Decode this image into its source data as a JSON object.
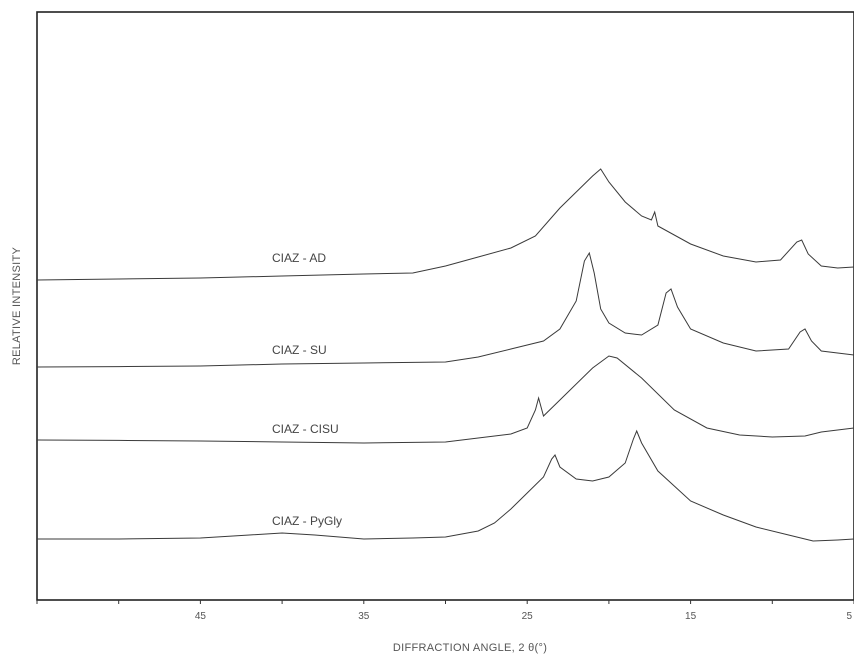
{
  "chart_data": {
    "type": "line",
    "xlabel": "DIFFRACTION ANGLE, 2 θ(°)",
    "ylabel": "RELATIVE INTENSITY",
    "xlim": [
      55,
      5
    ],
    "x_ticks": [
      45,
      35,
      25,
      15,
      5
    ],
    "grid": false,
    "series": [
      {
        "name": "CIAZ - AD",
        "baseline": 3,
        "points": [
          [
            55,
            0
          ],
          [
            50,
            0.05
          ],
          [
            45,
            0.1
          ],
          [
            40,
            0.2
          ],
          [
            35,
            0.3
          ],
          [
            32,
            0.35
          ],
          [
            30,
            0.7
          ],
          [
            28,
            1.15
          ],
          [
            26,
            1.6
          ],
          [
            24.5,
            2.2
          ],
          [
            23,
            3.6
          ],
          [
            21,
            5.2
          ],
          [
            20.5,
            5.55
          ],
          [
            20,
            4.9
          ],
          [
            19,
            3.9
          ],
          [
            18,
            3.2
          ],
          [
            17.4,
            3.0
          ],
          [
            17.2,
            3.4
          ],
          [
            17.0,
            2.7
          ],
          [
            15,
            1.8
          ],
          [
            13,
            1.2
          ],
          [
            11,
            0.9
          ],
          [
            9.5,
            1.0
          ],
          [
            8.5,
            1.9
          ],
          [
            8.2,
            2.0
          ],
          [
            7.8,
            1.3
          ],
          [
            7,
            0.7
          ],
          [
            6,
            0.6
          ],
          [
            5,
            0.65
          ]
        ]
      },
      {
        "name": "CIAZ - SU",
        "baseline": 2,
        "points": [
          [
            55,
            0
          ],
          [
            50,
            0.02
          ],
          [
            45,
            0.05
          ],
          [
            40,
            0.15
          ],
          [
            35,
            0.2
          ],
          [
            30,
            0.25
          ],
          [
            28,
            0.5
          ],
          [
            26,
            0.9
          ],
          [
            24,
            1.3
          ],
          [
            23,
            1.9
          ],
          [
            22,
            3.3
          ],
          [
            21.5,
            5.3
          ],
          [
            21.2,
            5.7
          ],
          [
            20.9,
            4.7
          ],
          [
            20.5,
            2.9
          ],
          [
            20,
            2.2
          ],
          [
            19,
            1.7
          ],
          [
            18,
            1.6
          ],
          [
            17,
            2.1
          ],
          [
            16.5,
            3.7
          ],
          [
            16.2,
            3.9
          ],
          [
            15.8,
            3.0
          ],
          [
            15,
            1.9
          ],
          [
            13,
            1.2
          ],
          [
            11,
            0.8
          ],
          [
            9,
            0.9
          ],
          [
            8.3,
            1.75
          ],
          [
            8,
            1.9
          ],
          [
            7.6,
            1.3
          ],
          [
            7,
            0.8
          ],
          [
            5,
            0.6
          ]
        ]
      },
      {
        "name": "CIAZ - CISU",
        "baseline": 1,
        "points": [
          [
            55,
            0
          ],
          [
            50,
            -0.02
          ],
          [
            45,
            -0.05
          ],
          [
            40,
            -0.1
          ],
          [
            35,
            -0.15
          ],
          [
            30,
            -0.1
          ],
          [
            28,
            0.1
          ],
          [
            26,
            0.3
          ],
          [
            25,
            0.6
          ],
          [
            24.5,
            1.5
          ],
          [
            24.3,
            2.1
          ],
          [
            24.0,
            1.2
          ],
          [
            23,
            2.0
          ],
          [
            21,
            3.6
          ],
          [
            20,
            4.2
          ],
          [
            19.5,
            4.1
          ],
          [
            18,
            3.1
          ],
          [
            16,
            1.5
          ],
          [
            14,
            0.6
          ],
          [
            12,
            0.25
          ],
          [
            10,
            0.15
          ],
          [
            8,
            0.2
          ],
          [
            7,
            0.4
          ],
          [
            5,
            0.6
          ]
        ]
      },
      {
        "name": "CIAZ - PyGly",
        "baseline": 0,
        "points": [
          [
            55,
            0
          ],
          [
            50,
            0
          ],
          [
            45,
            0.05
          ],
          [
            42,
            0.2
          ],
          [
            40,
            0.3
          ],
          [
            38,
            0.2
          ],
          [
            35,
            0
          ],
          [
            32,
            0.05
          ],
          [
            30,
            0.1
          ],
          [
            28,
            0.4
          ],
          [
            27,
            0.8
          ],
          [
            26,
            1.5
          ],
          [
            25,
            2.3
          ],
          [
            24,
            3.1
          ],
          [
            23.5,
            4.0
          ],
          [
            23.3,
            4.2
          ],
          [
            23,
            3.6
          ],
          [
            22,
            3.0
          ],
          [
            21,
            2.9
          ],
          [
            20,
            3.1
          ],
          [
            19,
            3.8
          ],
          [
            18.5,
            5.0
          ],
          [
            18.3,
            5.4
          ],
          [
            18,
            4.8
          ],
          [
            17,
            3.4
          ],
          [
            15,
            1.9
          ],
          [
            13,
            1.2
          ],
          [
            11,
            0.6
          ],
          [
            9,
            0.2
          ],
          [
            7.5,
            -0.1
          ],
          [
            6,
            -0.05
          ],
          [
            5,
            0
          ]
        ]
      }
    ]
  }
}
